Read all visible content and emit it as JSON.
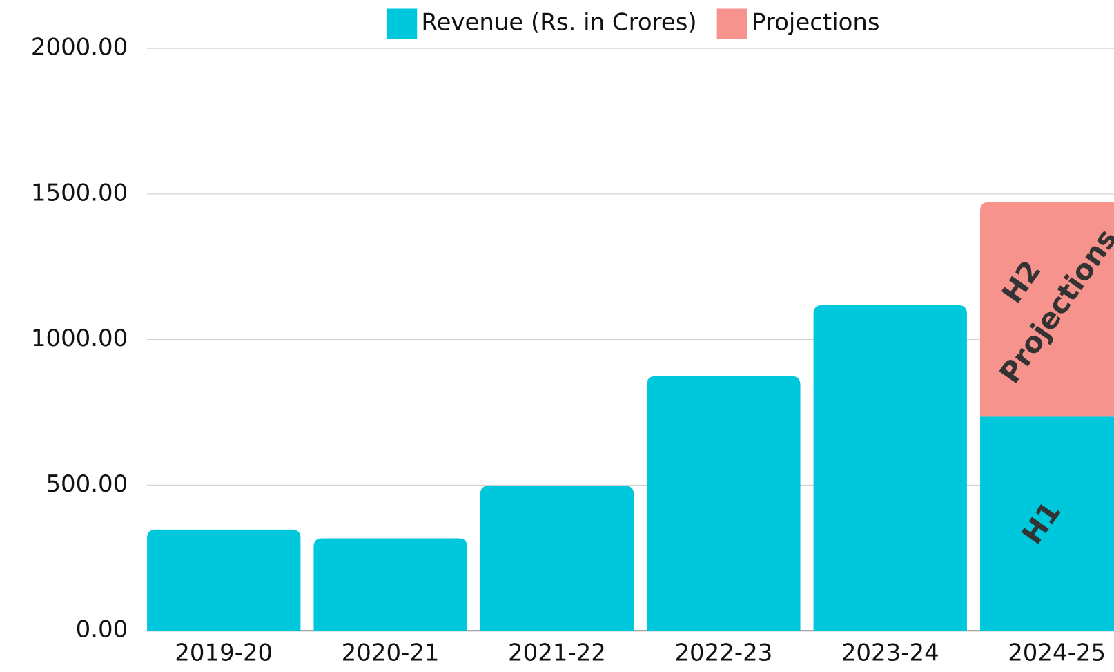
{
  "chart_data": {
    "type": "stacked_bar",
    "categories": [
      "2019-20",
      "2020-21",
      "2021-22",
      "2022-23",
      "2023-24",
      "2024-25"
    ],
    "series": [
      {
        "name": "Revenue (Rs. in Crores)",
        "color": "#00c8dc",
        "values": [
          347,
          317,
          498,
          874,
          1118,
          735
        ]
      },
      {
        "name": "Projections",
        "color": "#f7938d",
        "values": [
          null,
          null,
          null,
          null,
          null,
          737
        ]
      }
    ],
    "ylim": [
      0,
      2000
    ],
    "yticks": [
      {
        "value": 0,
        "label": "0.00"
      },
      {
        "value": 500,
        "label": "500.00"
      },
      {
        "value": 1000,
        "label": "1000.00"
      },
      {
        "value": 1500,
        "label": "1500.00"
      },
      {
        "value": 2000,
        "label": "2000.00"
      }
    ],
    "grid": true,
    "legend": "top",
    "annotations": [
      "H1",
      "H2",
      "Projections"
    ]
  }
}
